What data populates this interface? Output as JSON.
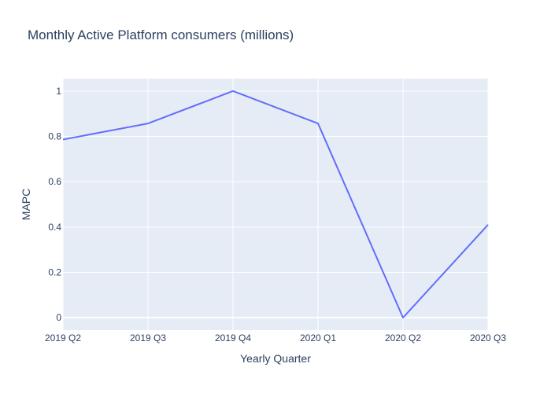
{
  "chart_data": {
    "type": "line",
    "title": "Monthly Active Platform consumers (millions)",
    "xlabel": "Yearly Quarter",
    "ylabel": "MAPC",
    "categories": [
      "2019 Q2",
      "2019 Q3",
      "2019 Q4",
      "2020 Q1",
      "2020 Q2",
      "2020 Q3"
    ],
    "series": [
      {
        "values": [
          0.786,
          0.857,
          1.0,
          0.857,
          0.0,
          0.41
        ]
      }
    ],
    "ylim": [
      -0.055,
      1.055
    ],
    "yticks": [
      0,
      0.2,
      0.4,
      0.6,
      0.8,
      1
    ],
    "ytick_labels": [
      "0",
      "0.2",
      "0.4",
      "0.6",
      "0.8",
      "1"
    ],
    "grid": true,
    "legend": "none",
    "colors": {
      "line": "#636efa",
      "plot_background": "#e5ecf6",
      "grid": "#ffffff",
      "text": "#2a3f5f"
    }
  }
}
